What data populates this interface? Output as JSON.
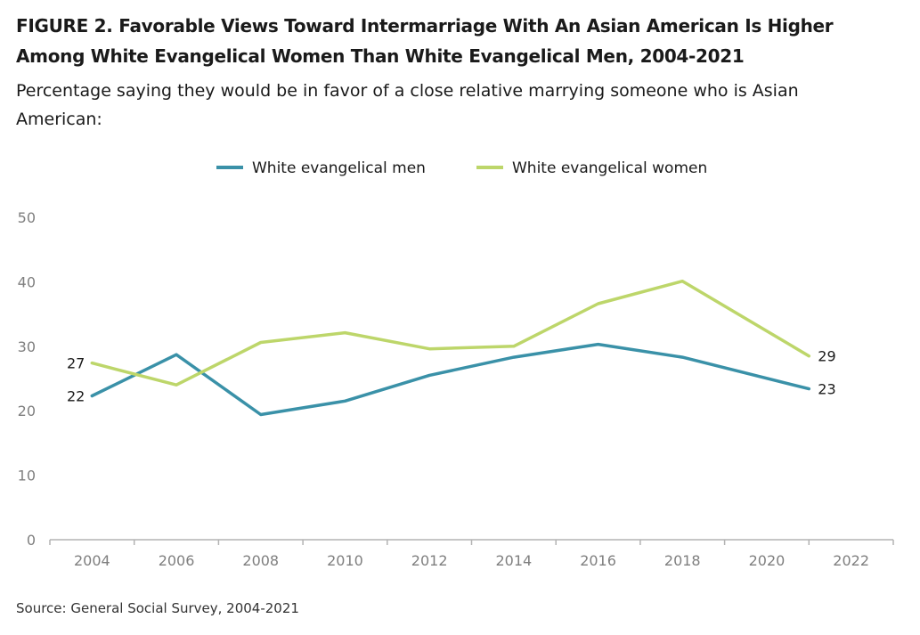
{
  "figure": {
    "title": "FIGURE 2.  Favorable Views Toward Intermarriage With An Asian American Is Higher Among White Evangelical Women Than White Evangelical Men, 2004-2021",
    "subtitle": "Percentage saying they would be in favor of a close relative marrying someone who is Asian American:",
    "source": "Source: General Social Survey, 2004-2021"
  },
  "colors": {
    "men": "#3a91a8",
    "women": "#bdd66a",
    "axis": "#b3b3b3",
    "tick_text": "#7f7f7f"
  },
  "chart_data": {
    "type": "line",
    "xlabel": "",
    "ylabel": "",
    "xlim": [
      2003,
      2023
    ],
    "ylim": [
      0,
      50
    ],
    "xticks": [
      2004,
      2006,
      2008,
      2010,
      2012,
      2014,
      2016,
      2018,
      2020,
      2022
    ],
    "yticks": [
      0,
      10,
      20,
      30,
      40,
      50
    ],
    "grid": false,
    "legend": "top-center",
    "series": [
      {
        "name": "White evangelical men",
        "color": "#3a91a8",
        "x": [
          2004,
          2006,
          2008,
          2010,
          2012,
          2014,
          2016,
          2018,
          2021
        ],
        "y": [
          22.3,
          28.7,
          19.4,
          21.5,
          25.5,
          28.3,
          30.3,
          28.3,
          23.4
        ],
        "labels": {
          "first": "22",
          "last": "23"
        }
      },
      {
        "name": "White evangelical women",
        "color": "#bdd66a",
        "x": [
          2004,
          2006,
          2008,
          2010,
          2012,
          2014,
          2016,
          2018,
          2021
        ],
        "y": [
          27.4,
          24.0,
          30.6,
          32.1,
          29.6,
          30.0,
          36.6,
          40.1,
          28.5
        ],
        "labels": {
          "first": "27",
          "last": "29"
        }
      }
    ]
  }
}
